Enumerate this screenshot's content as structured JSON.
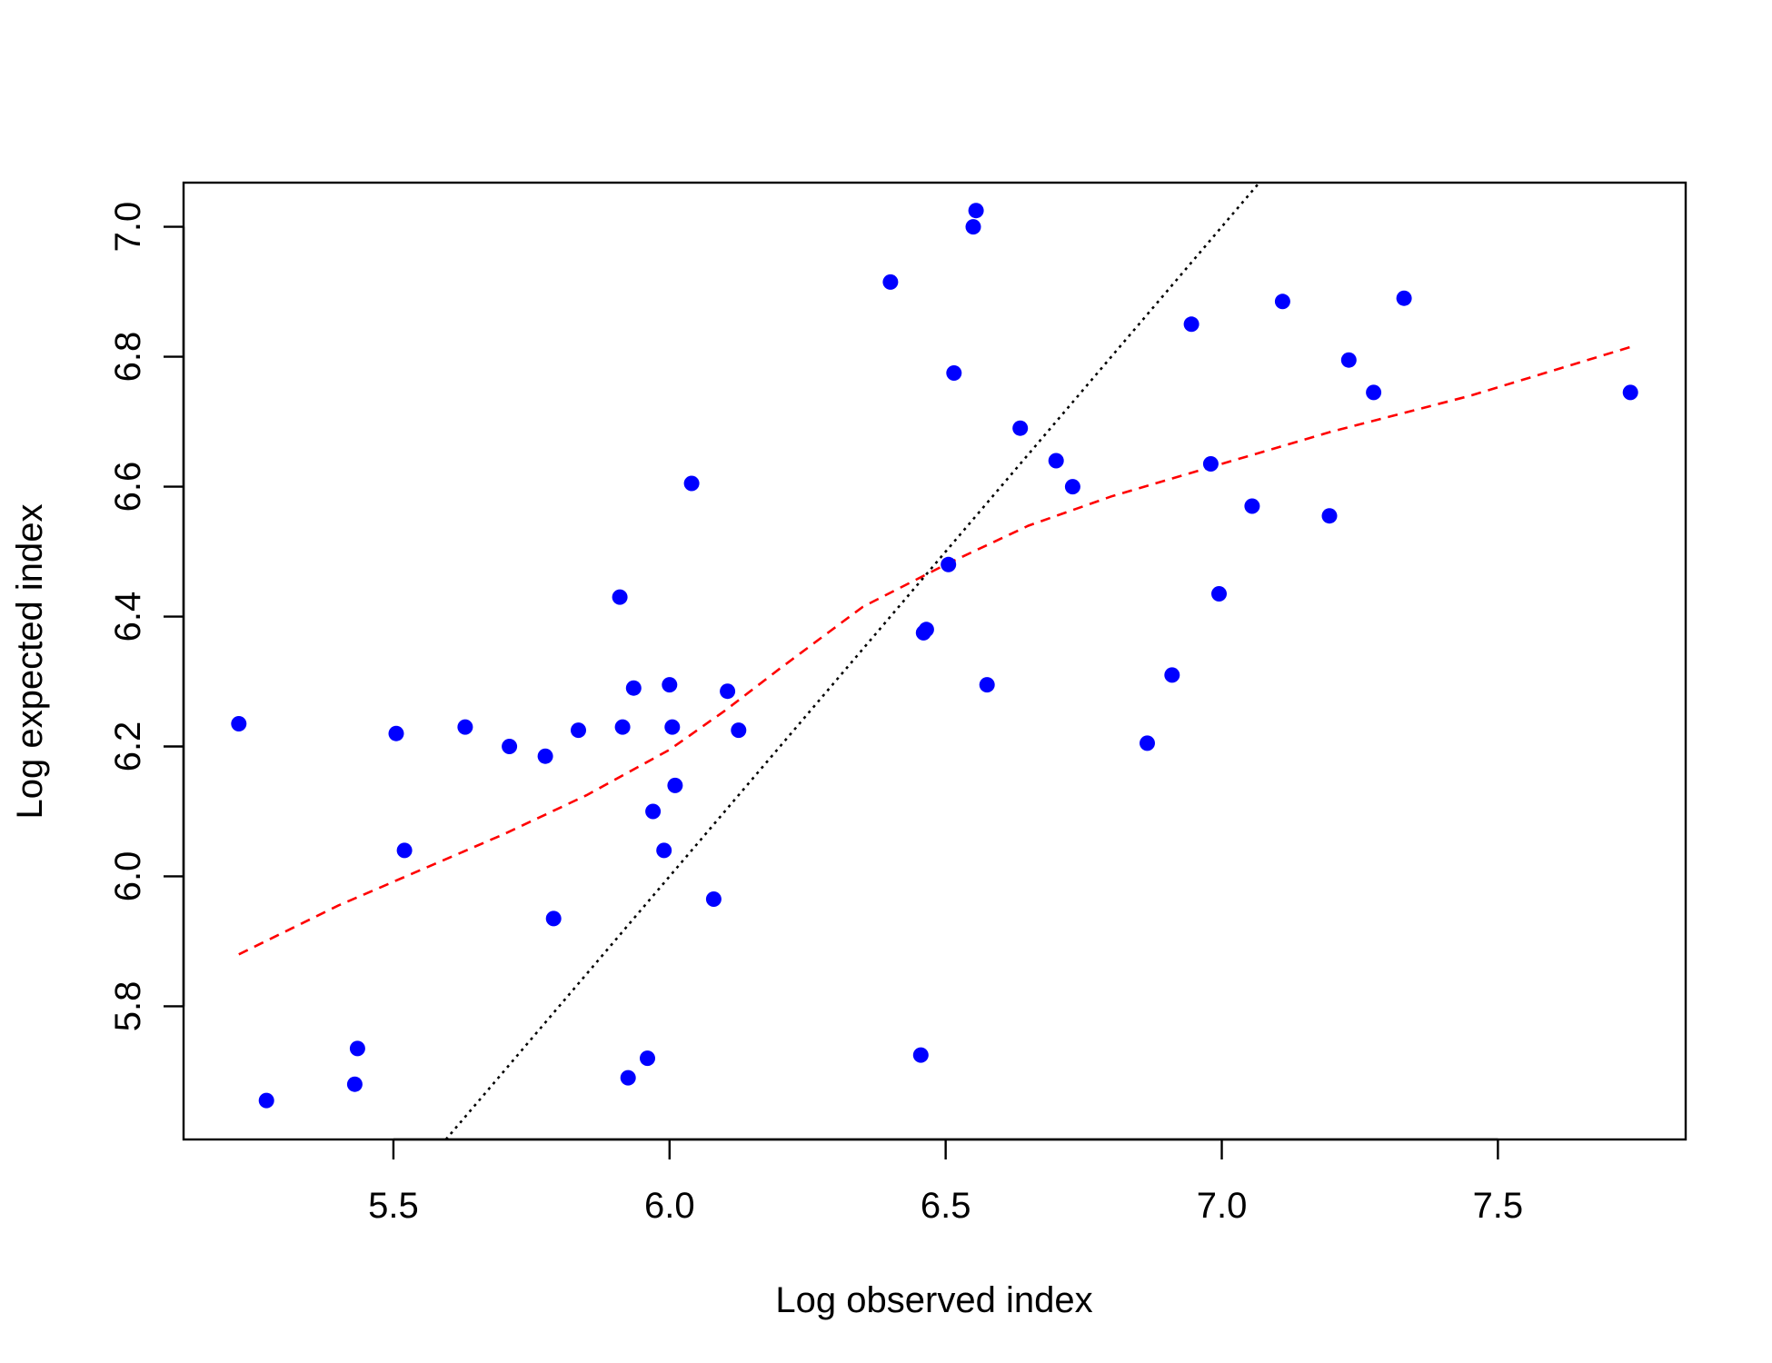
{
  "chart_data": {
    "type": "scatter",
    "title": "",
    "xlabel": "Log observed index",
    "ylabel": "Log expected index",
    "xlim": [
      5.12,
      7.84
    ],
    "ylim": [
      5.595,
      7.068
    ],
    "xticks": [
      5.5,
      6.0,
      6.5,
      7.0,
      7.5
    ],
    "xtick_labels": [
      "5.5",
      "6.0",
      "6.5",
      "7.0",
      "7.5"
    ],
    "yticks": [
      5.8,
      6.0,
      6.2,
      6.4,
      6.6,
      6.8,
      7.0
    ],
    "ytick_labels": [
      "5.8",
      "6.0",
      "6.2",
      "6.4",
      "6.6",
      "6.8",
      "7.0"
    ],
    "grid": false,
    "legend": "none",
    "series": [
      {
        "kind": "points",
        "color": "#0000ff",
        "points": [
          [
            5.22,
            6.235
          ],
          [
            5.27,
            5.655
          ],
          [
            5.43,
            5.68
          ],
          [
            5.435,
            5.735
          ],
          [
            5.505,
            6.22
          ],
          [
            5.52,
            6.04
          ],
          [
            5.63,
            6.23
          ],
          [
            5.71,
            6.2
          ],
          [
            5.775,
            6.185
          ],
          [
            5.79,
            5.935
          ],
          [
            5.835,
            6.225
          ],
          [
            5.91,
            6.43
          ],
          [
            5.915,
            6.23
          ],
          [
            5.925,
            5.69
          ],
          [
            5.935,
            6.29
          ],
          [
            5.96,
            5.72
          ],
          [
            5.97,
            6.1
          ],
          [
            5.99,
            6.04
          ],
          [
            6.0,
            6.295
          ],
          [
            6.005,
            6.23
          ],
          [
            6.01,
            6.14
          ],
          [
            6.04,
            6.605
          ],
          [
            6.08,
            5.965
          ],
          [
            6.105,
            6.285
          ],
          [
            6.125,
            6.225
          ],
          [
            6.4,
            6.915
          ],
          [
            6.455,
            5.725
          ],
          [
            6.46,
            6.375
          ],
          [
            6.465,
            6.38
          ],
          [
            6.505,
            6.48
          ],
          [
            6.515,
            6.775
          ],
          [
            6.55,
            7.0
          ],
          [
            6.555,
            7.025
          ],
          [
            6.575,
            6.295
          ],
          [
            6.635,
            6.69
          ],
          [
            6.7,
            6.64
          ],
          [
            6.73,
            6.6
          ],
          [
            6.865,
            6.205
          ],
          [
            6.91,
            6.31
          ],
          [
            6.945,
            6.85
          ],
          [
            6.98,
            6.635
          ],
          [
            6.995,
            6.435
          ],
          [
            7.055,
            6.57
          ],
          [
            7.11,
            6.885
          ],
          [
            7.195,
            6.555
          ],
          [
            7.23,
            6.795
          ],
          [
            7.275,
            6.745
          ],
          [
            7.33,
            6.89
          ],
          [
            7.74,
            6.745
          ]
        ]
      },
      {
        "kind": "line",
        "style": "dashed",
        "color": "#ff0000",
        "points": [
          [
            5.22,
            5.88
          ],
          [
            5.4,
            5.955
          ],
          [
            5.55,
            6.01
          ],
          [
            5.7,
            6.065
          ],
          [
            5.85,
            6.125
          ],
          [
            6.0,
            6.195
          ],
          [
            6.1,
            6.255
          ],
          [
            6.2,
            6.32
          ],
          [
            6.35,
            6.415
          ],
          [
            6.5,
            6.48
          ],
          [
            6.65,
            6.54
          ],
          [
            6.8,
            6.585
          ],
          [
            7.0,
            6.635
          ],
          [
            7.2,
            6.685
          ],
          [
            7.45,
            6.74
          ],
          [
            7.74,
            6.815
          ]
        ]
      },
      {
        "kind": "line",
        "style": "dotted",
        "color": "#000000",
        "points": [
          [
            5.595,
            5.595
          ],
          [
            7.068,
            7.068
          ]
        ]
      }
    ]
  }
}
